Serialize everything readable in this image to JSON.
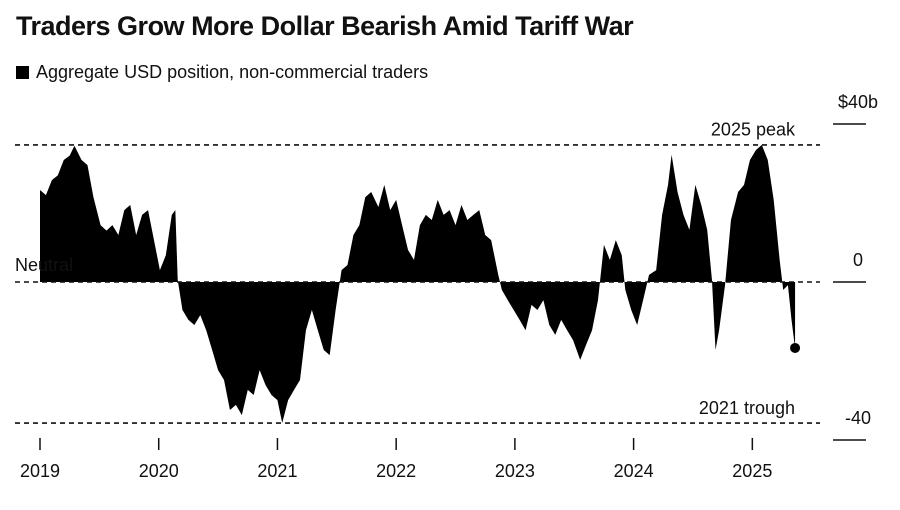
{
  "chart_data": {
    "type": "area",
    "title": "Traders Grow More Dollar Bearish Amid Tariff War",
    "series": [
      {
        "name": "Aggregate USD position, non-commercial traders",
        "color": "#000000",
        "x": [
          2019.0,
          2019.05,
          2019.1,
          2019.15,
          2019.2,
          2019.25,
          2019.29,
          2019.35,
          2019.4,
          2019.45,
          2019.51,
          2019.56,
          2019.61,
          2019.66,
          2019.71,
          2019.76,
          2019.81,
          2019.86,
          2019.91,
          2019.96,
          2020.01,
          2020.06,
          2020.11,
          2020.14,
          2020.16,
          2020.2,
          2020.25,
          2020.3,
          2020.35,
          2020.4,
          2020.45,
          2020.5,
          2020.55,
          2020.6,
          2020.65,
          2020.7,
          2020.75,
          2020.8,
          2020.85,
          2020.9,
          2020.95,
          2021.0,
          2021.04,
          2021.09,
          2021.14,
          2021.19,
          2021.24,
          2021.29,
          2021.34,
          2021.39,
          2021.44,
          2021.49,
          2021.54,
          2021.59,
          2021.64,
          2021.69,
          2021.74,
          2021.79,
          2021.85,
          2021.9,
          2021.95,
          2022.0,
          2022.05,
          2022.1,
          2022.15,
          2022.2,
          2022.25,
          2022.3,
          2022.35,
          2022.4,
          2022.45,
          2022.5,
          2022.55,
          2022.6,
          2022.65,
          2022.7,
          2022.75,
          2022.8,
          2022.86,
          2022.89,
          2022.94,
          2022.99,
          2023.04,
          2023.09,
          2023.14,
          2023.19,
          2023.24,
          2023.29,
          2023.34,
          2023.39,
          2023.44,
          2023.49,
          2023.55,
          2023.6,
          2023.65,
          2023.7,
          2023.75,
          2023.8,
          2023.85,
          2023.9,
          2023.93,
          2023.98,
          2024.03,
          2024.08,
          2024.13,
          2024.19,
          2024.24,
          2024.29,
          2024.32,
          2024.37,
          2024.42,
          2024.47,
          2024.52,
          2024.57,
          2024.62,
          2024.66,
          2024.69,
          2024.72,
          2024.77,
          2024.82,
          2024.88,
          2024.93,
          2024.98,
          2025.03,
          2025.08,
          2025.13,
          2025.18,
          2025.23,
          2025.26,
          2025.3,
          2025.33,
          2025.36
        ],
        "values": [
          23.3,
          22,
          25.8,
          27,
          30.9,
          32,
          34.5,
          30.9,
          29.6,
          21.5,
          14.4,
          13,
          14.4,
          11.9,
          18.2,
          19.5,
          11.9,
          17,
          18.2,
          10.6,
          3,
          6.8,
          17,
          18.2,
          0.5,
          -7.1,
          -9.6,
          -10.9,
          -8.4,
          -12.2,
          -17.2,
          -22.3,
          -24.8,
          -32.4,
          -31.1,
          -33.7,
          -27.3,
          -28.6,
          -22.3,
          -26.1,
          -28.6,
          -29.9,
          -35.7,
          -29.9,
          -27.3,
          -24.8,
          -12.2,
          -7.1,
          -12.2,
          -17.2,
          -18.5,
          -7.1,
          3,
          4.3,
          11.9,
          14.4,
          21.5,
          22.8,
          19,
          24.6,
          18.2,
          20.8,
          14.4,
          8.1,
          5.6,
          14.4,
          17,
          15.7,
          20.8,
          17,
          18.2,
          14.4,
          19.5,
          15.7,
          17,
          18.2,
          11.9,
          10.6,
          1.8,
          -2,
          -4.6,
          -7.1,
          -9.6,
          -12.2,
          -5.8,
          -7.1,
          -4.6,
          -10.9,
          -13.4,
          -9.6,
          -12.2,
          -14.7,
          -19.7,
          -15.9,
          -12.2,
          -4.6,
          9.4,
          5.6,
          10.6,
          6.8,
          -2,
          -7.1,
          -10.9,
          -4.6,
          1.8,
          3,
          17,
          24.6,
          32.2,
          22.8,
          17,
          13.2,
          24.6,
          19.5,
          13.2,
          0.5,
          -17.2,
          -12.2,
          -0.8,
          15.7,
          22.8,
          24.6,
          30.9,
          33.4,
          34.7,
          30.9,
          20.8,
          5.6,
          -2,
          -0.8,
          -9.6,
          -16.7
        ]
      }
    ],
    "xlim": [
      2019,
      2025.57
    ],
    "xticks": [
      2019,
      2020,
      2021,
      2022,
      2023,
      2024,
      2025
    ],
    "ylim": [
      -40,
      40
    ],
    "yticks": [
      {
        "value": 40,
        "label": "$40b"
      },
      0,
      -40
    ],
    "reference_lines": [
      {
        "label": "2025 peak",
        "value": 34.7
      },
      {
        "label": "Neutral",
        "value": 0
      },
      {
        "label": "2021 trough",
        "value": -35.7
      }
    ]
  }
}
